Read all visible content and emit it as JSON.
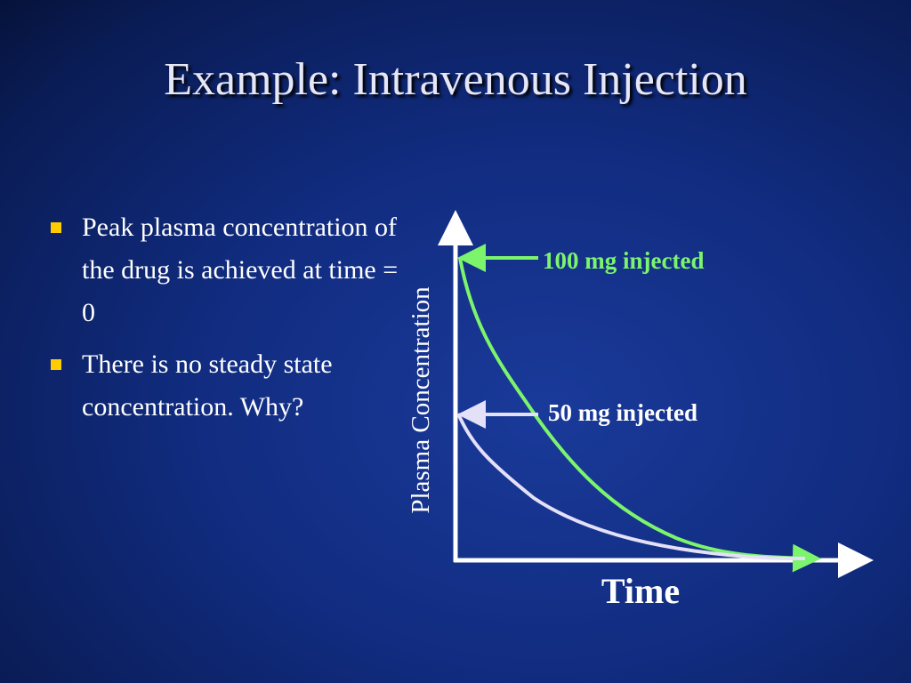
{
  "title": "Example: Intravenous Injection",
  "bullets": [
    "Peak plasma concentration of the drug is achieved at time = 0",
    "There is no steady state concentration.  Why?"
  ],
  "diagram": {
    "y_axis_label": "Plasma Concentration",
    "x_axis_label": "Time",
    "curves": [
      {
        "label": "100 mg injected"
      },
      {
        "label": "50 mg injected"
      }
    ]
  }
}
